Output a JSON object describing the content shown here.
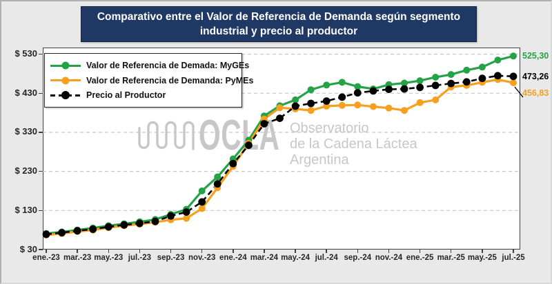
{
  "title": {
    "line1": "Comparativo entre el Valor de Referencia de Demanda según segmento",
    "line2": "industrial y precio al productor"
  },
  "watermark": {
    "acronym": "OCLA",
    "line1": "Observatorio",
    "line2": "de la Cadena Láctea",
    "line3": "Argentina"
  },
  "colors": {
    "myges_green": "#23a346",
    "pymes_orange": "#f5a01e",
    "productor_black": "#000000",
    "title_bg": "#1f3864",
    "page_bg": "#e9e9e9",
    "grid": "#c8c8c8",
    "watermark": "#c7c7c7"
  },
  "end_labels": [
    {
      "series": "myges",
      "text": "525,30"
    },
    {
      "series": "productor",
      "text": "473,26"
    },
    {
      "series": "pymes",
      "text": "456,83"
    }
  ],
  "chart_data": {
    "type": "line",
    "title": "Comparativo entre el Valor de Referencia de Demanda según segmento industrial y precio al productor",
    "categories": [
      "ene.-23",
      "feb.-23",
      "mar.-23",
      "abr.-23",
      "may.-23",
      "jun.-23",
      "jul.-23",
      "ago.-23",
      "sep.-23",
      "oct.-23",
      "nov.-23",
      "dic.-23",
      "ene.-24",
      "feb.-24",
      "mar.-24",
      "abr.-24",
      "may.-24",
      "jun.-24",
      "jul.-24",
      "ago.-24",
      "sep.-24",
      "oct.-24",
      "nov.-24",
      "dic.-24",
      "ene.-25",
      "feb.-25",
      "mar.-25",
      "abr.-25",
      "may.-25",
      "jun.-25",
      "jul.-25"
    ],
    "x_tick_labels": [
      "ene.-23",
      "mar.-23",
      "may.-23",
      "jul.-23",
      "sep.-23",
      "nov.-23",
      "ene.-24",
      "mar.-24",
      "may.-24",
      "jul.-24",
      "sep.-24",
      "nov.-24",
      "ene.-25",
      "mar.-25",
      "may.-25",
      "jul.-25"
    ],
    "series": [
      {
        "key": "myges",
        "name": "Valor de Referencia de Demada: MyGEs",
        "color_key": "myges_green",
        "dashed": false,
        "values": [
          71,
          75,
          80,
          85,
          91,
          96,
          101,
          107,
          120,
          133,
          180,
          216,
          262,
          310,
          372,
          398,
          413,
          439,
          451,
          458,
          447,
          441,
          452,
          456,
          462,
          471,
          478,
          489,
          497,
          515,
          525.3
        ]
      },
      {
        "key": "pymes",
        "name": "Valor de Referencia de Demanda: PyMEs",
        "color_key": "pymes_orange",
        "dashed": false,
        "values": [
          67,
          71,
          76,
          80,
          86,
          91,
          95,
          100,
          106,
          110,
          135,
          188,
          243,
          302,
          364,
          393,
          390,
          386,
          397,
          399,
          400,
          396,
          392,
          386,
          406,
          413,
          446,
          450,
          458,
          465,
          456.83
        ]
      },
      {
        "key": "productor",
        "name": "Precio al Productor",
        "color_key": "productor_black",
        "dashed": true,
        "values": [
          69,
          73,
          78,
          82,
          88,
          93,
          97,
          102,
          116,
          126,
          152,
          198,
          250,
          297,
          352,
          366,
          397,
          404,
          410,
          420,
          431,
          436,
          440,
          441,
          445,
          450,
          455,
          459,
          468,
          475,
          473.26
        ]
      }
    ],
    "ylim": [
      30,
      530
    ],
    "yticks": [
      30,
      130,
      230,
      330,
      430,
      530
    ],
    "ytick_labels": [
      "$ 30",
      "$ 130",
      "$ 230",
      "$ 330",
      "$ 430",
      "$ 530"
    ],
    "grid": "horizontal-dashed",
    "legend_position": "top-left",
    "last_point_labels": [
      "525,30",
      "473,26",
      "456,83"
    ]
  }
}
